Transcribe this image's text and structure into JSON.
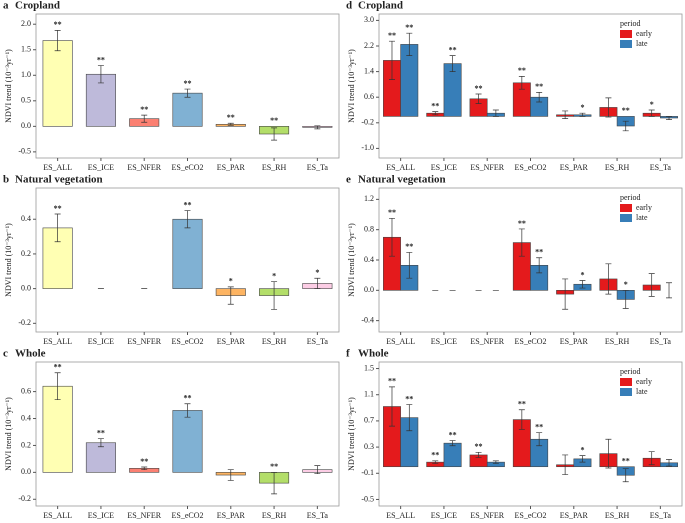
{
  "chart_data": [
    {
      "type": "bar",
      "label": "a",
      "title": "Cropland",
      "ylabel": "NDVI trend (10⁻³yr⁻¹)",
      "categories": [
        "ES_ALL",
        "ES_ICE",
        "ES_NFER",
        "ES_eCO2",
        "ES_PAR",
        "ES_RH",
        "ES_Ta"
      ],
      "ylim": [
        -0.62,
        2.2
      ],
      "yticks": [
        {
          "value": 2,
          "label": "2.0"
        },
        1.5,
        {
          "value": 1,
          "label": "1.0"
        },
        0.5,
        {
          "value": 0,
          "label": "0.0"
        },
        -0.5
      ],
      "series": [
        {
          "colors": [
            "#FFFFB3",
            "#BEBADA",
            "#FB8072",
            "#80B1D3",
            "#FDB462",
            "#B3DE69",
            "#FCCDE5"
          ],
          "values": [
            1.68,
            1.02,
            0.15,
            0.65,
            0.04,
            -0.15,
            -0.02
          ],
          "errors": [
            0.2,
            0.17,
            0.07,
            0.08,
            0.02,
            0.12,
            0.03
          ],
          "stars": [
            "**",
            "**",
            "**",
            "**",
            "**",
            "**",
            null
          ]
        }
      ]
    },
    {
      "type": "bar",
      "label": "b",
      "title": "Natural vegetation",
      "ylabel": "NDVI trend (10⁻³yr⁻¹)",
      "categories": [
        "ES_ALL",
        "ES_ICE",
        "ES_NFER",
        "ES_eCO2",
        "ES_PAR",
        "ES_RH",
        "ES_Ta"
      ],
      "ylim": [
        -0.25,
        0.58
      ],
      "yticks": [
        0.4,
        0.2,
        {
          "value": 0,
          "label": "0.0"
        },
        -0.2
      ],
      "series": [
        {
          "colors": [
            "#FFFFB3",
            "#BEBADA",
            "#FB8072",
            "#80B1D3",
            "#FDB462",
            "#B3DE69",
            "#FCCDE5"
          ],
          "values": [
            0.35,
            0,
            0,
            0.4,
            -0.04,
            -0.04,
            0.03
          ],
          "errors": [
            0.08,
            0,
            0,
            0.05,
            0.05,
            0.08,
            0.03
          ],
          "stars": [
            "**",
            null,
            null,
            "**",
            "*",
            "*",
            "*"
          ]
        }
      ]
    },
    {
      "type": "bar",
      "label": "c",
      "title": "Whole",
      "ylabel": "NDVI trend (10⁻³yr⁻¹)",
      "categories": [
        "ES_ALL",
        "ES_ICE",
        "ES_NFER",
        "ES_eCO2",
        "ES_PAR",
        "ES_RH",
        "ES_Ta"
      ],
      "ylim": [
        -0.25,
        0.82
      ],
      "yticks": [
        0.6,
        0.4,
        0.2,
        {
          "value": 0,
          "label": "0.0"
        },
        -0.2
      ],
      "series": [
        {
          "colors": [
            "#FFFFB3",
            "#BEBADA",
            "#FB8072",
            "#80B1D3",
            "#FDB462",
            "#B3DE69",
            "#FCCDE5"
          ],
          "values": [
            0.64,
            0.22,
            0.03,
            0.46,
            -0.02,
            -0.08,
            0.02
          ],
          "errors": [
            0.1,
            0.03,
            0.01,
            0.05,
            0.04,
            0.08,
            0.03
          ],
          "stars": [
            "**",
            "**",
            "**",
            "**",
            null,
            "**",
            null
          ]
        }
      ]
    },
    {
      "type": "bar",
      "label": "d",
      "title": "Cropland",
      "ylabel": "NDVI trend (10⁻³yr⁻¹)",
      "legend_title": "period",
      "legend": "top-right",
      "categories": [
        "ES_ALL",
        "ES_ICE",
        "ES_NFER",
        "ES_eCO2",
        "ES_PAR",
        "ES_RH",
        "ES_Ta"
      ],
      "ylim": [
        -1.3,
        3.2
      ],
      "yticks": [
        {
          "value": 3,
          "label": "3.0"
        },
        2.2,
        1.4,
        0.6,
        -0.2,
        {
          "value": -1,
          "label": "-1.0"
        }
      ],
      "series": [
        {
          "name": "early",
          "color": "#E41A1C",
          "values": [
            1.75,
            0.1,
            0.55,
            1.05,
            0.05,
            0.28,
            0.1
          ],
          "errors": [
            0.6,
            0.05,
            0.15,
            0.2,
            0.12,
            0.3,
            0.1
          ],
          "stars": [
            "**",
            "**",
            "**",
            "**",
            null,
            null,
            "*"
          ]
        },
        {
          "name": "late",
          "color": "#377EB8",
          "values": [
            2.25,
            1.65,
            0.1,
            0.6,
            0.05,
            -0.3,
            -0.05
          ],
          "errors": [
            0.35,
            0.25,
            0.1,
            0.15,
            0.05,
            0.15,
            0.05
          ],
          "stars": [
            "**",
            "**",
            null,
            "**",
            "*",
            "**",
            null
          ]
        }
      ]
    },
    {
      "type": "bar",
      "label": "e",
      "title": "Natural vegetation",
      "ylabel": "NDVI trend (10⁻³yr⁻¹)",
      "legend_title": "period",
      "legend": "top-right",
      "categories": [
        "ES_ALL",
        "ES_ICE",
        "ES_NFER",
        "ES_eCO2",
        "ES_PAR",
        "ES_RH",
        "ES_Ta"
      ],
      "ylim": [
        -0.55,
        1.35
      ],
      "yticks": [
        1.2,
        0.8,
        0.4,
        {
          "value": 0,
          "label": "0.0"
        },
        -0.4
      ],
      "series": [
        {
          "name": "early",
          "color": "#E41A1C",
          "values": [
            0.7,
            0,
            0,
            0.63,
            -0.05,
            0.15,
            0.07
          ],
          "errors": [
            0.25,
            0,
            0,
            0.18,
            0.2,
            0.2,
            0.15
          ],
          "stars": [
            "**",
            null,
            null,
            "**",
            null,
            null,
            null
          ]
        },
        {
          "name": "late",
          "color": "#377EB8",
          "values": [
            0.33,
            0,
            0,
            0.33,
            0.08,
            -0.12,
            0.0
          ],
          "errors": [
            0.17,
            0,
            0,
            0.1,
            0.05,
            0.12,
            0.1
          ],
          "stars": [
            "**",
            null,
            null,
            "**",
            "*",
            "*",
            null
          ]
        }
      ]
    },
    {
      "type": "bar",
      "label": "f",
      "title": "Whole",
      "ylabel": "NDVI trend (10⁻³yr⁻¹)",
      "legend_title": "period",
      "legend": "top-right",
      "categories": [
        "ES_ALL",
        "ES_ICE",
        "ES_NFER",
        "ES_eCO2",
        "ES_PAR",
        "ES_RH",
        "ES_Ta"
      ],
      "ylim": [
        -0.6,
        1.6
      ],
      "yticks": [
        1.5,
        1.1,
        0.7,
        0.3,
        -0.1,
        -0.5
      ],
      "series": [
        {
          "name": "early",
          "color": "#E41A1C",
          "values": [
            0.92,
            0.07,
            0.18,
            0.72,
            0.03,
            0.2,
            0.13
          ],
          "errors": [
            0.3,
            0.02,
            0.04,
            0.15,
            0.15,
            0.22,
            0.1
          ],
          "stars": [
            "**",
            "**",
            "**",
            "**",
            null,
            null,
            null
          ]
        },
        {
          "name": "late",
          "color": "#377EB8",
          "values": [
            0.75,
            0.36,
            0.07,
            0.42,
            0.12,
            -0.13,
            0.06
          ],
          "errors": [
            0.2,
            0.04,
            0.02,
            0.1,
            0.05,
            0.1,
            0.05
          ],
          "stars": [
            "**",
            "**",
            null,
            "**",
            "*",
            "**",
            null
          ]
        }
      ]
    }
  ]
}
